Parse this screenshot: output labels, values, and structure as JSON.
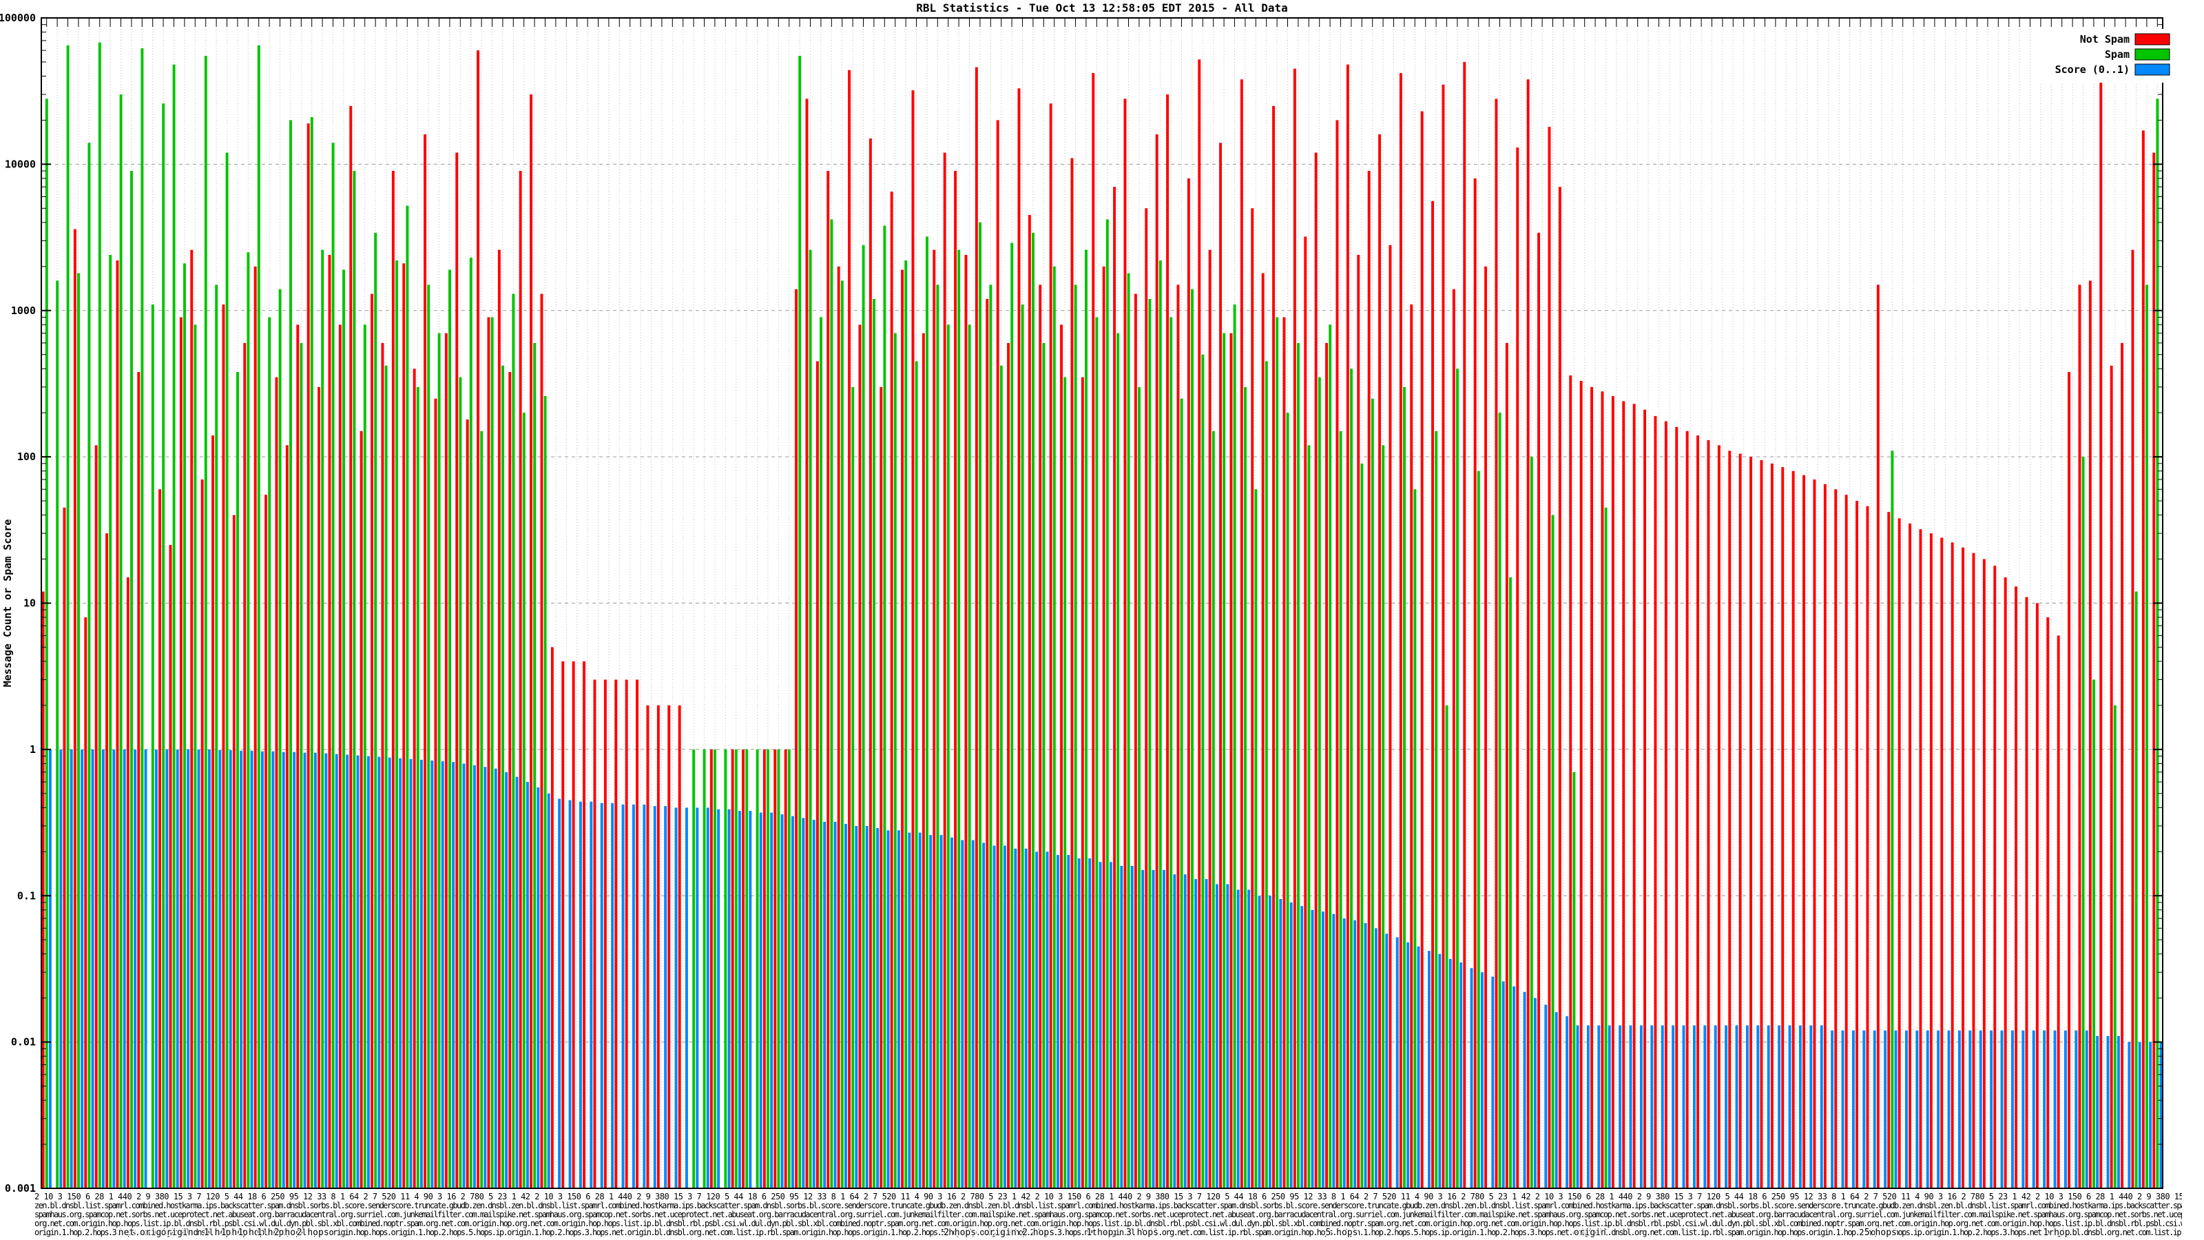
{
  "title": "RBL Statistics - Tue Oct 13 12:58:05 EDT 2015 - All Data",
  "y_axis": {
    "label": "Message Count or Spam Score",
    "ticks": [
      "100000",
      "10000",
      "1000",
      "100",
      "10",
      "1",
      "0.1",
      "0.01",
      "0.001"
    ]
  },
  "legend": [
    {
      "label": "Not Spam",
      "color": "#ff0000"
    },
    {
      "label": "Spam",
      "color": "#00c400"
    },
    {
      "label": "Score (0..1)",
      "color": "#0088ff"
    }
  ],
  "colors": {
    "not_spam": "#ff0000",
    "spam": "#00c400",
    "score": "#0088ff",
    "grid_vertical": "#bcbcbc",
    "grid_horizontal": "#9a9a9a",
    "axis": "#000000"
  },
  "chart_data": {
    "type": "bar",
    "scale": "log",
    "ylim": [
      0.001,
      100000
    ],
    "ylabel": "Message Count or Spam Score",
    "title": "RBL Statistics - Tue Oct 13 12:58:05 EDT 2015 - All Data",
    "legend_position": "top-right",
    "grid": true,
    "note": "Per-RBL message counts (log scale). X labels are hundreds of overlapping RBL names with origin/hop qualifiers; values below are close visual estimates read from the plot.",
    "series": [
      {
        "name": "Not Spam",
        "color": "#ff0000",
        "values": [
          12,
          0,
          45,
          3600,
          8,
          120,
          30,
          2200,
          15,
          380,
          0,
          60,
          25,
          900,
          2600,
          70,
          140,
          1100,
          40,
          600,
          2000,
          55,
          350,
          120,
          800,
          19000,
          300,
          2400,
          800,
          25000,
          150,
          1300,
          600,
          9000,
          2100,
          400,
          16000,
          250,
          700,
          12000,
          180,
          60000,
          900,
          2600,
          380,
          9000,
          30000,
          1300,
          5,
          4,
          4,
          4,
          3,
          3,
          3,
          3,
          3,
          2,
          2,
          2,
          2,
          0,
          0,
          1,
          0,
          1,
          1,
          0,
          1,
          1,
          1,
          1400,
          28000,
          450,
          9000,
          2000,
          44000,
          800,
          15000,
          300,
          6500,
          1900,
          32000,
          700,
          2600,
          12000,
          9000,
          2400,
          46000,
          1200,
          20000,
          600,
          33000,
          4500,
          1500,
          26000,
          800,
          11000,
          350,
          42000,
          2000,
          7000,
          28000,
          1300,
          5000,
          16000,
          30000,
          1500,
          8000,
          52000,
          2600,
          14000,
          700,
          38000,
          5000,
          1800,
          25000,
          900,
          45000,
          3200,
          12000,
          600,
          20000,
          48000,
          2400,
          9000,
          16000,
          2800,
          42000,
          1100,
          23000,
          5600,
          35000,
          1400,
          50000,
          8000,
          2000,
          28000,
          600,
          13000,
          38000,
          3400,
          18000,
          7000,
          360,
          330,
          300,
          280,
          260,
          240,
          230,
          210,
          190,
          175,
          160,
          150,
          140,
          130,
          120,
          110,
          105,
          100,
          95,
          90,
          85,
          80,
          75,
          70,
          65,
          60,
          55,
          50,
          46,
          1500,
          42,
          38,
          35,
          32,
          30,
          28,
          26,
          24,
          22,
          20,
          18,
          15,
          13,
          11,
          10,
          8,
          6,
          380,
          1500,
          1600,
          55000,
          420,
          600,
          2600,
          17000,
          12000
        ]
      },
      {
        "name": "Spam",
        "color": "#00c400",
        "values": [
          28000,
          1600,
          65000,
          1800,
          14000,
          68000,
          2400,
          30000,
          9000,
          62000,
          1100,
          26000,
          48000,
          2100,
          800,
          55000,
          1500,
          12000,
          380,
          2500,
          65000,
          900,
          1400,
          20000,
          600,
          21000,
          2600,
          14000,
          1900,
          9000,
          800,
          3400,
          420,
          2200,
          5200,
          300,
          1500,
          700,
          1900,
          350,
          2300,
          150,
          900,
          420,
          1300,
          200,
          600,
          260,
          0,
          0,
          0,
          0,
          0,
          0,
          0,
          0,
          0,
          0,
          0,
          0,
          0,
          1,
          1,
          1,
          1,
          1,
          1,
          1,
          1,
          1,
          1,
          55000,
          2600,
          900,
          4200,
          1600,
          300,
          2800,
          1200,
          3800,
          700,
          2200,
          450,
          3200,
          1500,
          800,
          2600,
          800,
          4000,
          1500,
          420,
          2900,
          1100,
          3400,
          600,
          2000,
          350,
          1500,
          2600,
          900,
          4200,
          700,
          1800,
          300,
          1200,
          2200,
          900,
          250,
          1400,
          500,
          150,
          700,
          1100,
          300,
          60,
          450,
          900,
          200,
          600,
          120,
          350,
          800,
          150,
          400,
          90,
          250,
          120,
          0,
          300,
          60,
          0,
          150,
          2,
          400,
          0,
          80,
          0,
          200,
          15,
          0,
          100,
          0,
          40,
          0,
          0.7,
          0,
          0,
          45,
          0,
          0,
          0,
          0,
          0,
          0,
          0,
          0,
          0,
          0,
          0,
          0,
          0,
          0,
          0,
          0,
          0,
          0,
          0,
          0,
          0,
          0,
          0,
          0,
          0,
          0,
          110,
          0,
          0,
          0,
          0,
          0,
          0,
          0,
          0,
          0,
          0,
          0,
          0,
          0,
          0,
          0,
          0,
          0,
          100,
          3,
          0,
          2,
          0,
          12,
          1500,
          28000
        ]
      },
      {
        "name": "Score (0..1)",
        "color": "#0088ff",
        "values": [
          1,
          1,
          1,
          1,
          1,
          1,
          1,
          1,
          1,
          1,
          1,
          1,
          1,
          1,
          1,
          1,
          0.99,
          0.99,
          0.98,
          0.98,
          0.97,
          0.97,
          0.96,
          0.96,
          0.95,
          0.95,
          0.94,
          0.93,
          0.92,
          0.91,
          0.9,
          0.89,
          0.88,
          0.87,
          0.86,
          0.85,
          0.84,
          0.83,
          0.82,
          0.8,
          0.78,
          0.76,
          0.74,
          0.7,
          0.65,
          0.6,
          0.55,
          0.5,
          0.46,
          0.45,
          0.44,
          0.44,
          0.43,
          0.43,
          0.42,
          0.42,
          0.42,
          0.41,
          0.41,
          0.4,
          0.4,
          0.4,
          0.4,
          0.39,
          0.39,
          0.38,
          0.38,
          0.37,
          0.37,
          0.36,
          0.35,
          0.34,
          0.33,
          0.32,
          0.32,
          0.31,
          0.3,
          0.3,
          0.29,
          0.28,
          0.28,
          0.27,
          0.27,
          0.26,
          0.26,
          0.25,
          0.24,
          0.24,
          0.23,
          0.22,
          0.22,
          0.21,
          0.21,
          0.2,
          0.2,
          0.19,
          0.19,
          0.18,
          0.18,
          0.17,
          0.17,
          0.16,
          0.16,
          0.15,
          0.15,
          0.15,
          0.14,
          0.14,
          0.13,
          0.13,
          0.12,
          0.12,
          0.11,
          0.11,
          0.1,
          0.1,
          0.095,
          0.09,
          0.085,
          0.08,
          0.078,
          0.075,
          0.07,
          0.068,
          0.065,
          0.06,
          0.055,
          0.052,
          0.048,
          0.045,
          0.042,
          0.04,
          0.037,
          0.035,
          0.032,
          0.03,
          0.028,
          0.026,
          0.024,
          0.022,
          0.02,
          0.018,
          0.016,
          0.015,
          0.013,
          0.013,
          0.013,
          0.013,
          0.013,
          0.013,
          0.013,
          0.013,
          0.013,
          0.013,
          0.013,
          0.013,
          0.013,
          0.013,
          0.013,
          0.013,
          0.013,
          0.013,
          0.013,
          0.013,
          0.013,
          0.013,
          0.013,
          0.013,
          0.012,
          0.012,
          0.012,
          0.012,
          0.012,
          0.012,
          0.012,
          0.012,
          0.012,
          0.012,
          0.012,
          0.012,
          0.012,
          0.012,
          0.012,
          0.012,
          0.012,
          0.012,
          0.012,
          0.012,
          0.012,
          0.012,
          0.012,
          0.012,
          0.012,
          0.011,
          0.011,
          0.011,
          0.01,
          0.01,
          0.01,
          0.01
        ]
      }
    ],
    "x_label_rows": [
      "2 10 3 150 6 28 1 440 2 9 380 15 3 7 120 5 44 18 6 250 95 12 33 8 1 64 2 7 520 11 4 90 3 16 2 780 5 23 1 42 ",
      "zen.bl.dnsbl.list.spamrl.combined.hostkarma.ips.backscatter.spam.dnsbl.sorbs.bl.score.senderscore.truncate.gbudb.zen.dnsbl.",
      "spamhaus.org.spamcop.net.sorbs.net.uceprotect.net.abuseat.org.barracudacentral.org.surriel.com.junkemailfilter.com.mailspike.net.",
      "org.net.com.origin.hop.hops.list.ip.bl.dnsbl.rbl.psbl.csi.wl.dul.dyn.pbl.sbl.xbl.combined.noptr.spam.org.net.com.origin.hop.",
      "origin.1.hop.2.hops.3.hops.net.origin.bl.dnsbl.org.net.com.list.ip.rbl.spam.origin.hop.hops.origin.1.hop.2.hops.5.hops.ip."
    ],
    "x_readable_labels": [
      {
        "text": "net origin",
        "f": 0.049
      },
      {
        "text": "origin",
        "f": 0.064
      },
      {
        "text": "1 hop",
        "f": 0.083
      },
      {
        "text": "1 hop",
        "f": 0.091
      },
      {
        "text": "1 hop",
        "f": 0.099
      },
      {
        "text": "1 hop",
        "f": 0.108
      },
      {
        "text": "2 hop",
        "f": 0.116
      },
      {
        "text": "2 hops",
        "f": 0.128
      },
      {
        "text": "2 hops",
        "f": 0.433
      },
      {
        "text": "origin",
        "f": 0.452
      },
      {
        "text": "2 hops",
        "f": 0.47
      },
      {
        "text": "1 hop",
        "f": 0.499
      },
      {
        "text": "3 hops",
        "f": 0.519
      },
      {
        "text": "5 hops",
        "f": 0.613
      },
      {
        "text": "origin",
        "f": 0.73
      },
      {
        "text": "5 hops",
        "f": 0.867
      },
      {
        "text": "1 hop",
        "f": 0.95
      }
    ]
  }
}
